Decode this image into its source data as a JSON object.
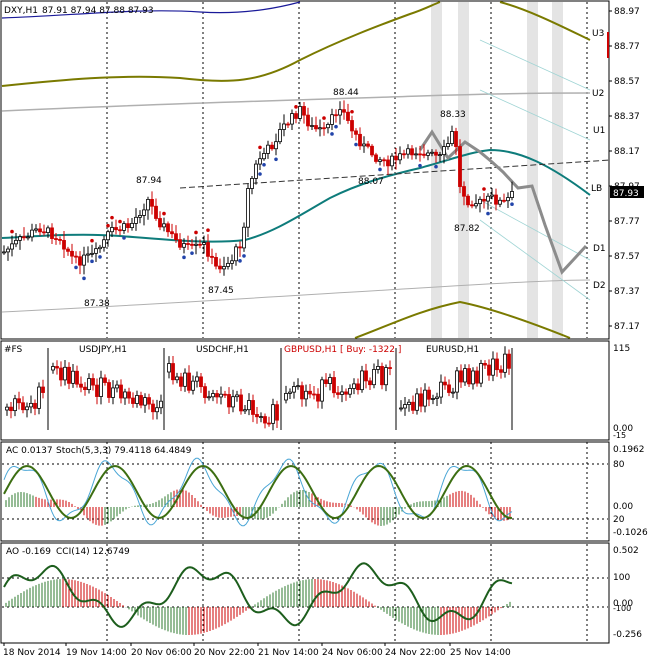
{
  "header": {
    "symbol": "DXY,H1",
    "ohlc": "87.91 87.94 87.88 87.93"
  },
  "price_axis": {
    "ticks": [
      "88.97",
      "88.77",
      "88.57",
      "88.37",
      "88.17",
      "87.97",
      "87.77",
      "87.57",
      "87.37",
      "87.17"
    ],
    "current": "87.93",
    "current_color": "#000000"
  },
  "pivot_labels": [
    "U3",
    "U2",
    "U1",
    "LB",
    "D1",
    "D2"
  ],
  "annotations": [
    "88.44",
    "88.33",
    "87.94",
    "88.07",
    "87.82",
    "87.38",
    "87.45"
  ],
  "subpanel1": {
    "title": "#FS",
    "pairs": [
      "USDJPY,H1",
      "USDCHF,H1",
      "GBPUSD,H1 [ Buy: -1322 ]",
      "EURUSD,H1"
    ],
    "axis": [
      "115",
      "0.00",
      "-15"
    ],
    "gbp_color": "#cc0000"
  },
  "subpanel2": {
    "ac": "AC 0.0137",
    "stoch": "Stoch(5,3,3) 79.4118 64.4849",
    "axis_left": [
      "80",
      "0.00",
      "20",
      "-0.1026"
    ],
    "axis_top": "0.1962"
  },
  "subpanel3": {
    "ao": "AO -0.169",
    "cci": "CCI(14) 12.6749",
    "axis": [
      "0.502",
      "100",
      "0.00",
      "-100",
      "-0.256"
    ]
  },
  "time_axis": [
    "18 Nov 2014",
    "19 Nov 14:00",
    "20 Nov 06:00",
    "20 Nov 22:00",
    "21 Nov 14:00",
    "24 Nov 06:00",
    "24 Nov 22:00",
    "25 Nov 14:00"
  ],
  "colors": {
    "bull": "#000000",
    "bear": "#cc0000",
    "teal": "#0e7c7b",
    "olive": "#7a7a00",
    "navy": "#1a1a99"
  }
}
